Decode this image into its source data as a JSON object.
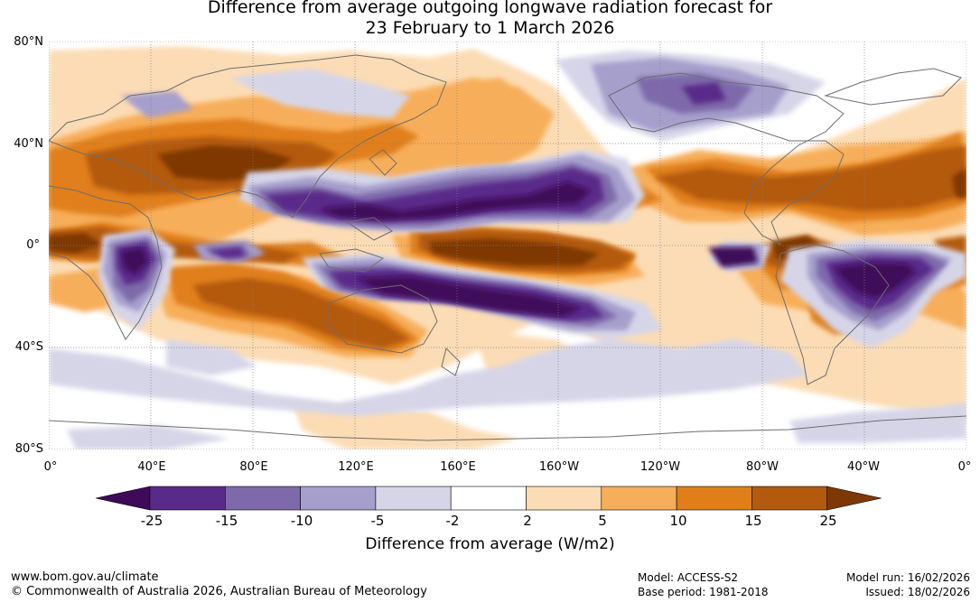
{
  "title": {
    "line1": "Difference from average outgoing longwave radiation forecast for",
    "line2": "23 February to 1 March 2026"
  },
  "map": {
    "lat_labels": [
      "80°N",
      "40°N",
      "0°",
      "40°S",
      "80°S"
    ],
    "lon_labels": [
      "0°",
      "40°E",
      "80°E",
      "120°E",
      "160°E",
      "160°W",
      "120°W",
      "80°W",
      "40°W",
      "0°"
    ],
    "gridline_color": "#808080",
    "coastline_color": "#6e6e6e"
  },
  "colorbar": {
    "ticks": [
      "-25",
      "-15",
      "-10",
      "-5",
      "-2",
      "2",
      "5",
      "10",
      "15",
      "25"
    ],
    "colors": [
      "#3f0a5a",
      "#5a2a8a",
      "#7e6aaa",
      "#a69fcc",
      "#d6d5e8",
      "#ffffff",
      "#fcdcb4",
      "#f7ae5a",
      "#e07f1a",
      "#b45a0c",
      "#7e3806"
    ],
    "label": "Difference from average (W/m2)"
  },
  "footer": {
    "url": "www.bom.gov.au/climate",
    "copyright": "© Commonwealth of Australia 2026, Australian Bureau of Meteorology",
    "model": "Model: ACCESS-S2",
    "base_period": "Base period: 1981-2018",
    "model_run": "Model run: 16/02/2026",
    "issued": "Issued: 18/02/2026"
  }
}
